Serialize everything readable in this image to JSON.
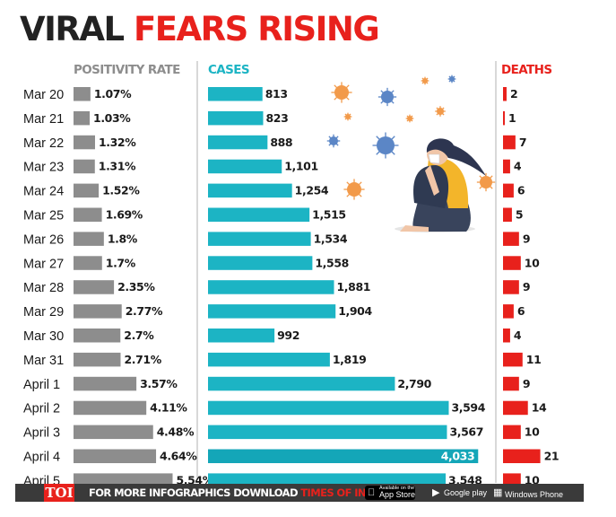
{
  "title": {
    "part1": "VIRAL",
    "part2": "FEARS RISING"
  },
  "colors": {
    "positivity": "#8d8d8d",
    "cases": "#1cb4c4",
    "cases_highlight": "#14a6b8",
    "deaths": "#e8211c",
    "title_red": "#e8211c",
    "dark": "#222222",
    "divider": "#bdbdbd"
  },
  "chart_data": {
    "type": "bar",
    "categories": [
      "Mar 20",
      "Mar 21",
      "Mar 22",
      "Mar 23",
      "Mar 24",
      "Mar 25",
      "Mar 26",
      "Mar 27",
      "Mar 28",
      "Mar 29",
      "Mar 30",
      "Mar 31",
      "April 1",
      "April 2",
      "April 3",
      "April 4",
      "April 5"
    ],
    "series": [
      {
        "name": "POSITIVITY RATE",
        "unit": "%",
        "values": [
          1.07,
          1.03,
          1.32,
          1.31,
          1.52,
          1.69,
          1.8,
          1.7,
          2.35,
          2.77,
          2.7,
          2.71,
          3.57,
          4.11,
          4.48,
          4.64,
          5.54
        ]
      },
      {
        "name": "CASES",
        "values": [
          813,
          823,
          888,
          1101,
          1254,
          1515,
          1534,
          1558,
          1881,
          1904,
          992,
          1819,
          2790,
          3594,
          3567,
          4033,
          3548
        ]
      },
      {
        "name": "DEATHS",
        "values": [
          2,
          1,
          7,
          4,
          6,
          5,
          9,
          10,
          9,
          6,
          4,
          11,
          9,
          14,
          10,
          21,
          10
        ]
      }
    ],
    "title": "VIRAL FEARS RISING",
    "grid": false,
    "legend": "none"
  },
  "footer": {
    "logo": "TOI",
    "text": "FOR MORE INFOGRAPHICS DOWNLOAD ",
    "app_name": "TIMES OF INDIA APP",
    "stores": [
      {
        "small": "Available on the",
        "big": "App Store",
        "icon": "apple-icon"
      },
      {
        "small": "",
        "big": "Google play",
        "icon": "google-play-icon"
      },
      {
        "small": "",
        "big": "Windows Phone",
        "icon": "windows-icon"
      }
    ]
  }
}
